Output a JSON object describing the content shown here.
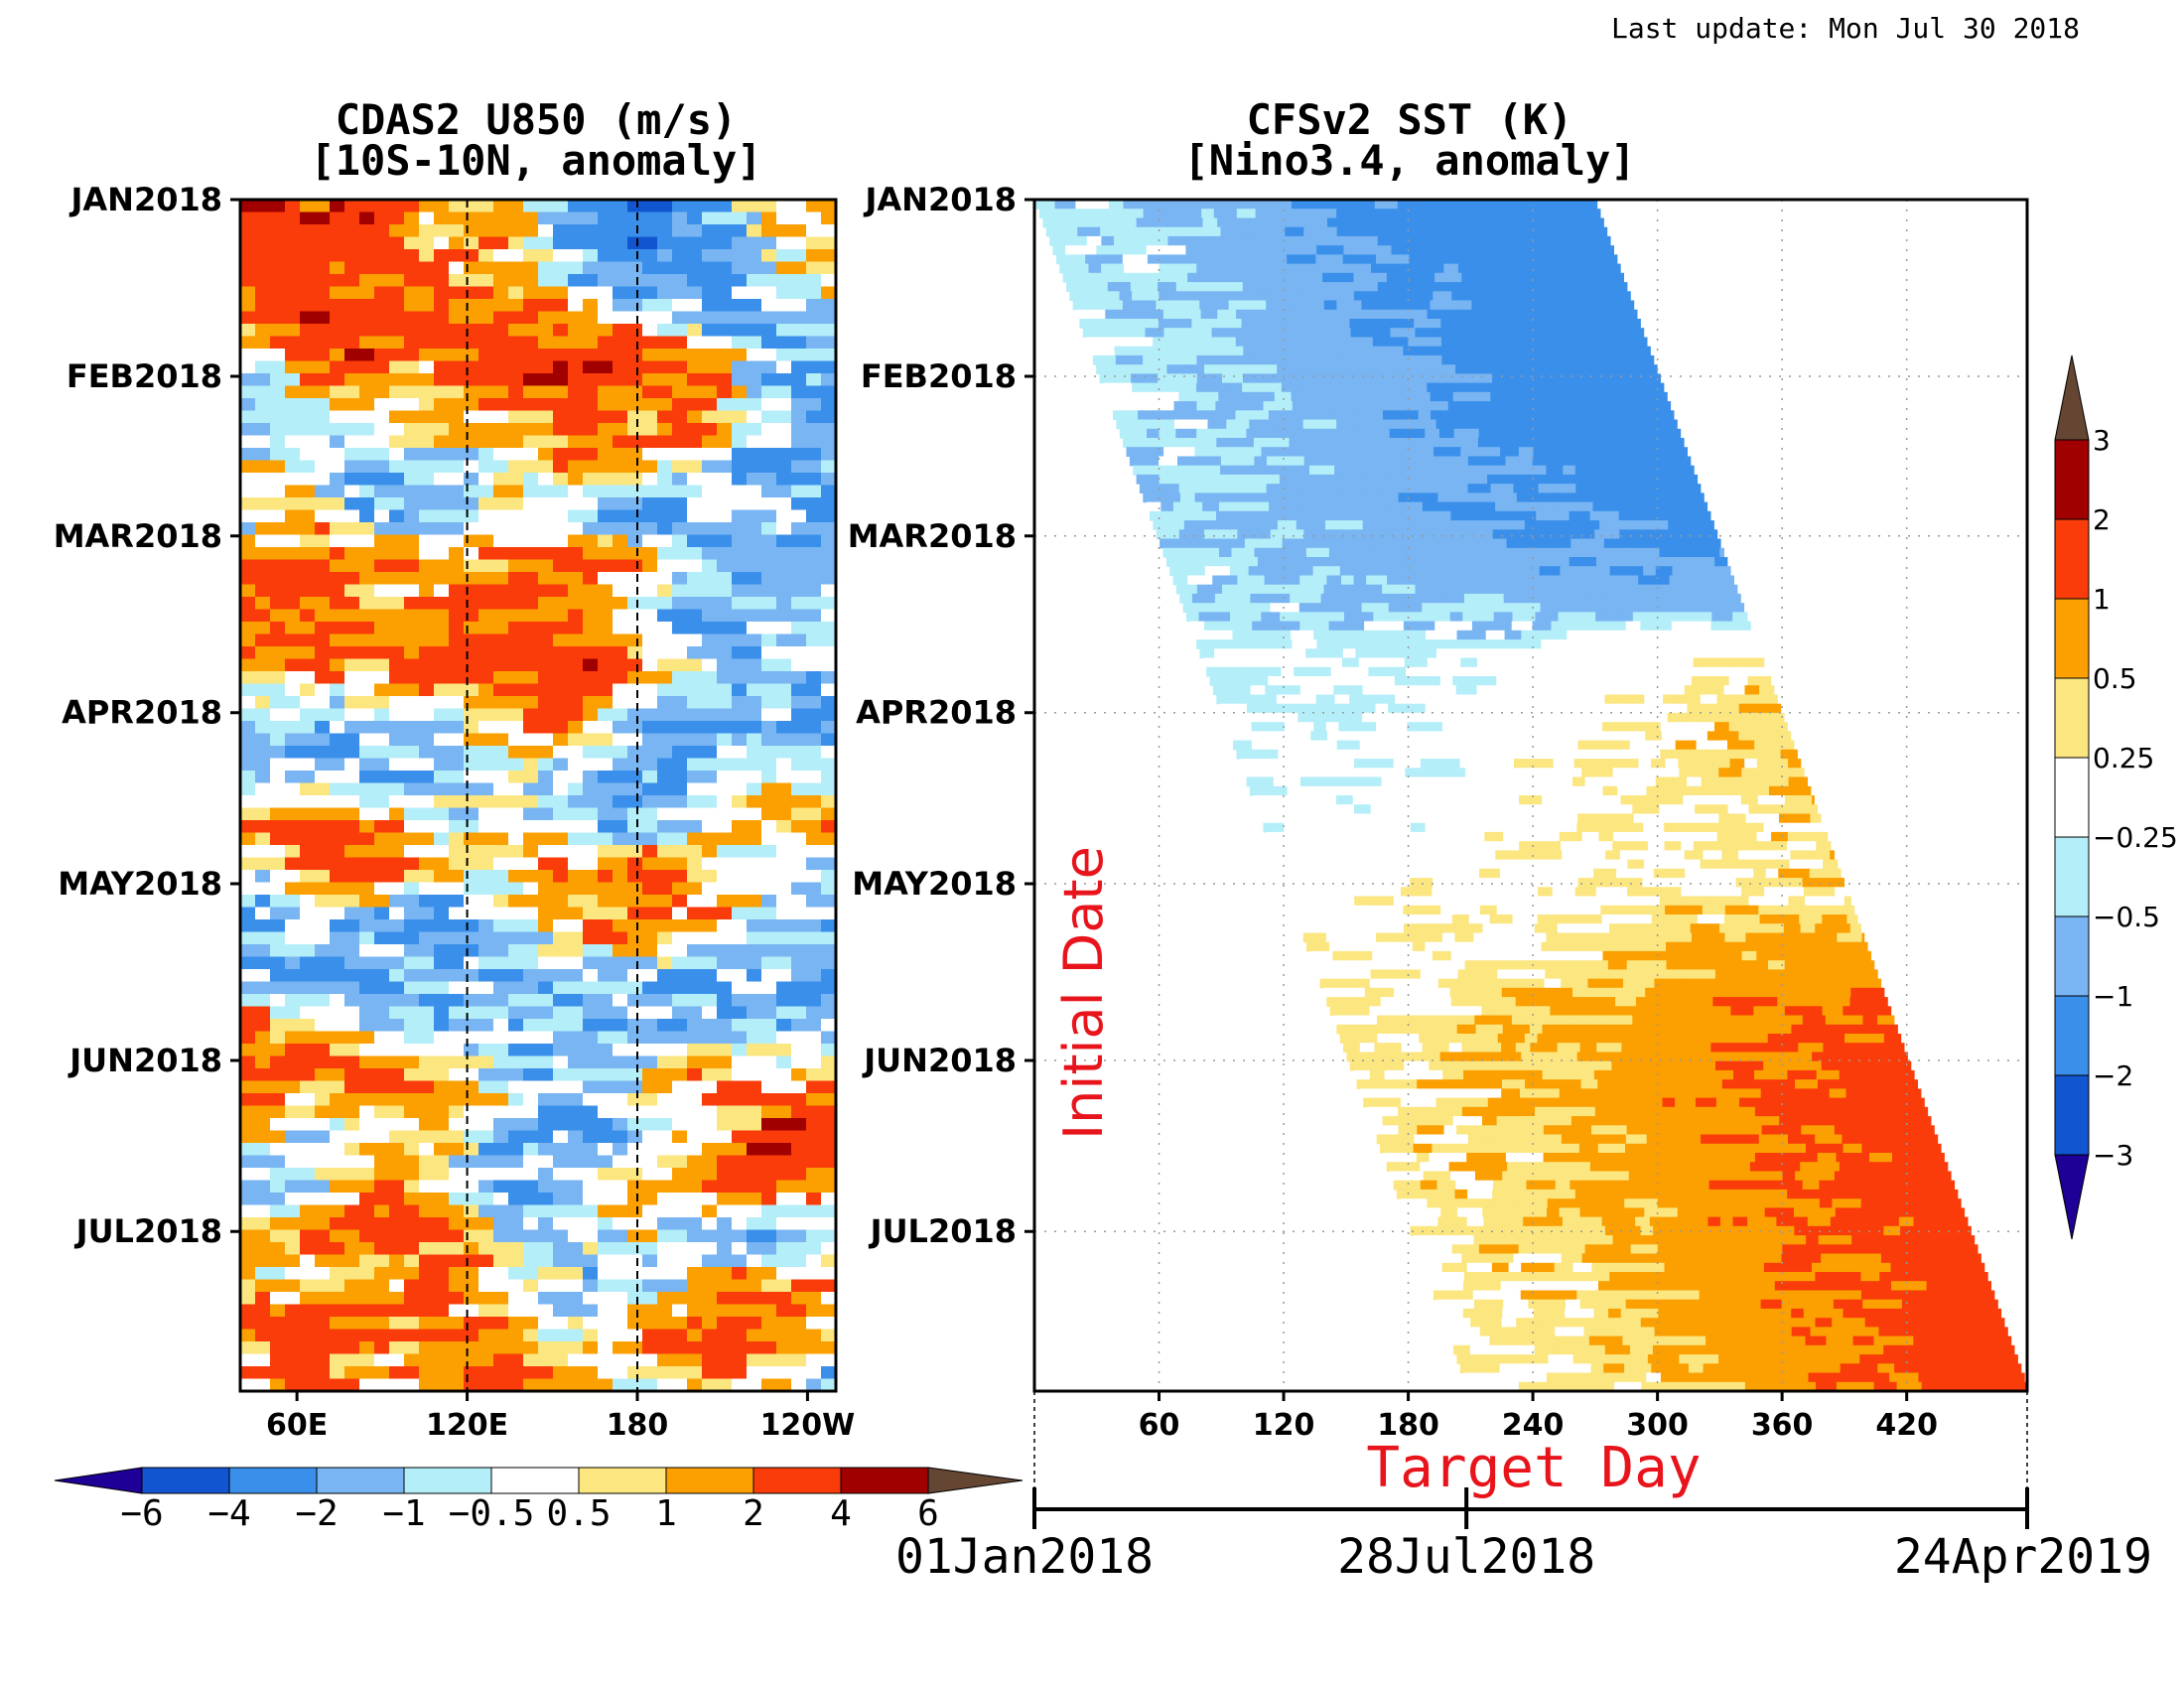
{
  "last_update": "Last update: Mon Jul 30 2018",
  "chart_data": [
    {
      "type": "heatmap",
      "title": "CDAS2 U850 (m/s)",
      "subtitle": "[10S-10N, anomaly]",
      "xlabel": "",
      "ylabel": "",
      "x_ticks": [
        "60E",
        "120E",
        "180",
        "120W"
      ],
      "x_tick_values": [
        60,
        120,
        180,
        240
      ],
      "xlim": [
        40,
        250
      ],
      "y_ticks": [
        "JAN2018",
        "FEB2018",
        "MAR2018",
        "APR2018",
        "MAY2018",
        "JUN2018",
        "JUL2018"
      ],
      "y_tick_values": [
        0,
        31,
        59,
        90,
        120,
        151,
        181
      ],
      "ylim": [
        0,
        209
      ],
      "reference_lines_x": [
        120,
        180
      ],
      "colorbar": {
        "orientation": "horizontal",
        "levels": [
          "−6",
          "−4",
          "−2",
          "−1",
          "−0.5",
          "0.5",
          "1",
          "2",
          "4",
          "6"
        ],
        "colors": [
          "#1e0096",
          "#1155d0",
          "#3a8fea",
          "#78b5f2",
          "#b4eef8",
          "#ffffff",
          "#fbe680",
          "#fba000",
          "#fa3c0a",
          "#a00000",
          "#644632"
        ]
      },
      "bands": [
        {
          "day": 6,
          "v": [
            3,
            3,
            3,
            1,
            1,
            -2,
            -4,
            -2,
            0.5,
            1
          ]
        },
        {
          "day": 14,
          "v": [
            2,
            3,
            2,
            2,
            1,
            -1,
            -2,
            -3,
            -0.5,
            0.5
          ]
        },
        {
          "day": 22,
          "v": [
            1,
            4,
            3,
            3,
            3,
            2,
            0.5,
            -1,
            -2,
            -1
          ]
        },
        {
          "day": 30,
          "v": [
            -1,
            2,
            3,
            1,
            3,
            4,
            3,
            2,
            -1,
            -2
          ]
        },
        {
          "day": 38,
          "v": [
            -2,
            -1,
            0.5,
            2,
            1,
            3,
            2,
            3,
            -1,
            -3
          ]
        },
        {
          "day": 47,
          "v": [
            1,
            -0.5,
            -2,
            -1,
            0.5,
            2,
            1,
            -0.5,
            -2,
            -2
          ]
        },
        {
          "day": 55,
          "v": [
            -1,
            1,
            -2,
            -1,
            -0.5,
            -1,
            -2,
            -1,
            -1,
            -2
          ]
        },
        {
          "day": 64,
          "v": [
            2,
            3,
            2,
            0.5,
            2,
            3,
            1,
            -1,
            -2,
            -1
          ]
        },
        {
          "day": 73,
          "v": [
            3,
            2,
            1,
            2,
            3,
            2,
            -0.5,
            -2,
            -1,
            0.5
          ]
        },
        {
          "day": 82,
          "v": [
            1,
            2,
            2,
            3,
            3,
            4,
            2,
            -1,
            -2,
            -1
          ]
        },
        {
          "day": 91,
          "v": [
            -1,
            -2,
            -1,
            -0.5,
            1,
            3,
            -1,
            -2,
            -1,
            -2
          ]
        },
        {
          "day": 100,
          "v": [
            -2,
            -1,
            -2,
            -1,
            -0.5,
            -1,
            -2,
            -1,
            0.5,
            -1
          ]
        },
        {
          "day": 109,
          "v": [
            1,
            3,
            2,
            -0.5,
            1,
            -1,
            -2,
            -1,
            1,
            2
          ]
        },
        {
          "day": 118,
          "v": [
            -1,
            2,
            3,
            1,
            0.5,
            2,
            3,
            2,
            -1,
            -0.5
          ]
        },
        {
          "day": 127,
          "v": [
            -2,
            -1,
            -2,
            -3,
            -1,
            1,
            2,
            1,
            -0.5,
            -1
          ]
        },
        {
          "day": 136,
          "v": [
            -1,
            -2,
            -1,
            -2,
            -1,
            -0.5,
            -1,
            -2,
            -1,
            -2
          ]
        },
        {
          "day": 145,
          "v": [
            2,
            1,
            -1,
            -2,
            -1,
            -2,
            -1,
            -1,
            -2,
            -1
          ]
        },
        {
          "day": 154,
          "v": [
            3,
            2,
            3,
            1,
            -0.5,
            -1,
            0.5,
            2,
            1,
            0.5
          ]
        },
        {
          "day": 163,
          "v": [
            1,
            -1,
            -0.5,
            1,
            -1,
            -2,
            -1,
            0.5,
            3,
            4
          ]
        },
        {
          "day": 172,
          "v": [
            -2,
            -1,
            2,
            1,
            -2,
            -1,
            0.5,
            2,
            3,
            2
          ]
        },
        {
          "day": 181,
          "v": [
            -1,
            2,
            3,
            2,
            -0.5,
            -1,
            1,
            -1,
            -2,
            -1
          ]
        },
        {
          "day": 190,
          "v": [
            1,
            0.5,
            1,
            2,
            1,
            -1,
            -2,
            1,
            2,
            1
          ]
        },
        {
          "day": 199,
          "v": [
            2,
            3,
            2,
            1,
            2,
            -0.5,
            2,
            3,
            2,
            1
          ]
        },
        {
          "day": 207,
          "v": [
            1,
            2,
            1,
            2,
            3,
            1,
            -1,
            2,
            1,
            -1
          ]
        }
      ]
    },
    {
      "type": "heatmap",
      "title": "CFSv2 SST (K)",
      "subtitle": "[Nino3.4, anomaly]",
      "xlabel": "Target Day",
      "ylabel": "Initial Date",
      "x_ticks": [
        "60",
        "120",
        "180",
        "240",
        "300",
        "360",
        "420"
      ],
      "x_tick_values": [
        60,
        120,
        180,
        240,
        300,
        360,
        420
      ],
      "xlim": [
        0,
        478
      ],
      "y_ticks": [
        "JAN2018",
        "FEB2018",
        "MAR2018",
        "APR2018",
        "MAY2018",
        "JUN2018",
        "JUL2018"
      ],
      "y_tick_values": [
        0,
        31,
        59,
        90,
        120,
        151,
        181
      ],
      "ylim": [
        0,
        209
      ],
      "date_axis": {
        "ticks": [
          "01Jan2018",
          "28Jul2018",
          "24Apr2019"
        ],
        "tick_values": [
          0,
          208,
          478
        ]
      },
      "forecast_length_days": 270,
      "colorbar": {
        "orientation": "vertical",
        "levels": [
          "−3",
          "−2",
          "−1",
          "−0.5",
          "−0.25",
          "0.25",
          "0.5",
          "1",
          "2",
          "3"
        ],
        "colors": [
          "#1e0096",
          "#1155d0",
          "#3a8fea",
          "#78b5f2",
          "#b4eef8",
          "#ffffff",
          "#fbe680",
          "#fba000",
          "#fa3c0a",
          "#a00000",
          "#644632"
        ]
      },
      "bands": [
        {
          "day": 0,
          "v": [
            -0.4,
            -1.2,
            -1.5
          ]
        },
        {
          "day": 20,
          "v": [
            -0.5,
            -1.1,
            -1.5
          ]
        },
        {
          "day": 40,
          "v": [
            -0.5,
            -1.0,
            -1.5
          ]
        },
        {
          "day": 55,
          "v": [
            -0.6,
            -1.0,
            -1.3
          ]
        },
        {
          "day": 70,
          "v": [
            -0.5,
            -0.7,
            -0.8
          ]
        },
        {
          "day": 80,
          "v": [
            -0.3,
            -0.1,
            0.2
          ]
        },
        {
          "day": 95,
          "v": [
            -0.3,
            0.1,
            0.6
          ]
        },
        {
          "day": 110,
          "v": [
            -0.1,
            0.2,
            0.3
          ]
        },
        {
          "day": 125,
          "v": [
            0.1,
            0.3,
            0.4
          ]
        },
        {
          "day": 140,
          "v": [
            0.3,
            0.7,
            1.1
          ]
        },
        {
          "day": 155,
          "v": [
            0.4,
            0.9,
            1.3
          ]
        },
        {
          "day": 175,
          "v": [
            0.4,
            0.9,
            1.3
          ]
        },
        {
          "day": 195,
          "v": [
            0.3,
            0.9,
            1.4
          ]
        }
      ]
    }
  ]
}
